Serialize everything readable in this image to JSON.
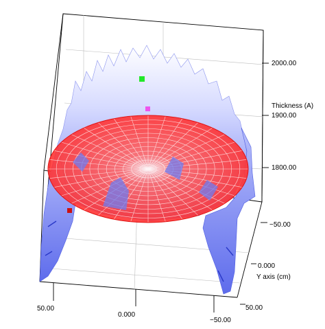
{
  "chart_data": {
    "type": "surface-3d",
    "title": "",
    "z_axis": {
      "label": "Thickness (A)",
      "ticks": [
        {
          "value": 2000,
          "label": "2000.00"
        },
        {
          "value": 1900,
          "label": "1900.00"
        },
        {
          "value": 1800,
          "label": "1800.00"
        }
      ]
    },
    "y_axis": {
      "label": "Y axis (cm)",
      "ticks": [
        {
          "value": -50,
          "label": "−50.00"
        },
        {
          "value": 0,
          "label": "0.000"
        },
        {
          "value": 50,
          "label": "50.00"
        }
      ]
    },
    "x_axis": {
      "label": "",
      "ticks": [
        {
          "value": 50,
          "label": "50.00"
        },
        {
          "value": 0,
          "label": "0.000"
        },
        {
          "value": -50,
          "label": "−50.00"
        }
      ]
    },
    "reference_plane": {
      "shape": "disc",
      "grid": "polar",
      "color": "#ff2020"
    },
    "surface_color": "#7a86f0",
    "markers": [
      {
        "color": "#22e82a"
      },
      {
        "color": "#ee55ee"
      },
      {
        "color": "#cc1111"
      }
    ],
    "grid": true
  }
}
